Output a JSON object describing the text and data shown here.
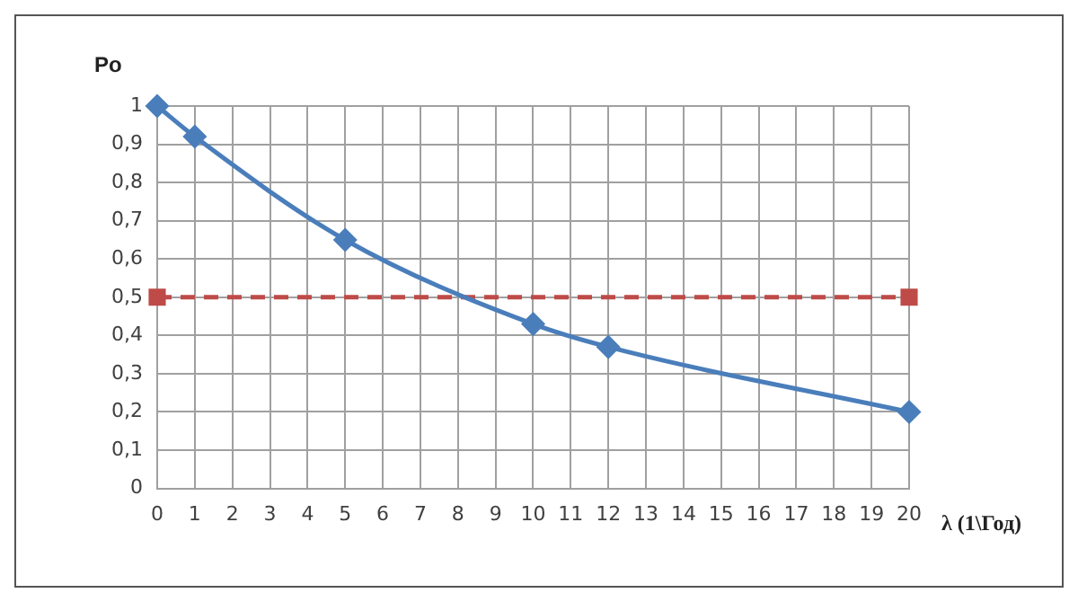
{
  "chart_data": {
    "type": "line",
    "ylabel": "Po",
    "xlabel": "λ (1\\Год)",
    "series": [
      {
        "color": "#4a7ebb",
        "marker": "diamond",
        "line_style": "solid",
        "x": [
          0,
          1,
          5,
          10,
          12,
          20
        ],
        "values": [
          1,
          0.92,
          0.65,
          0.43,
          0.37,
          0.2
        ]
      },
      {
        "color": "#be4b48",
        "marker": "square",
        "line_style": "dashed",
        "x": [
          0,
          20
        ],
        "values": [
          0.5,
          0.5
        ]
      }
    ],
    "xlim": [
      0,
      20
    ],
    "xticks": [
      0,
      1,
      2,
      3,
      4,
      5,
      6,
      7,
      8,
      9,
      10,
      11,
      12,
      13,
      14,
      15,
      16,
      17,
      18,
      19,
      20
    ],
    "ylim": [
      0,
      1
    ],
    "yticks": [
      0,
      {
        "value": 0.1,
        "label": "0,1"
      },
      {
        "value": 0.2,
        "label": "0,2"
      },
      {
        "value": 0.3,
        "label": "0,3"
      },
      {
        "value": 0.4,
        "label": "0,4"
      },
      {
        "value": 0.5,
        "label": "0,5"
      },
      {
        "value": 0.6,
        "label": "0,6"
      },
      {
        "value": 0.7,
        "label": "0,7"
      },
      {
        "value": 0.8,
        "label": "0,8"
      },
      {
        "value": 0.9,
        "label": "0,9"
      },
      1
    ],
    "grid": true,
    "legend": false
  }
}
